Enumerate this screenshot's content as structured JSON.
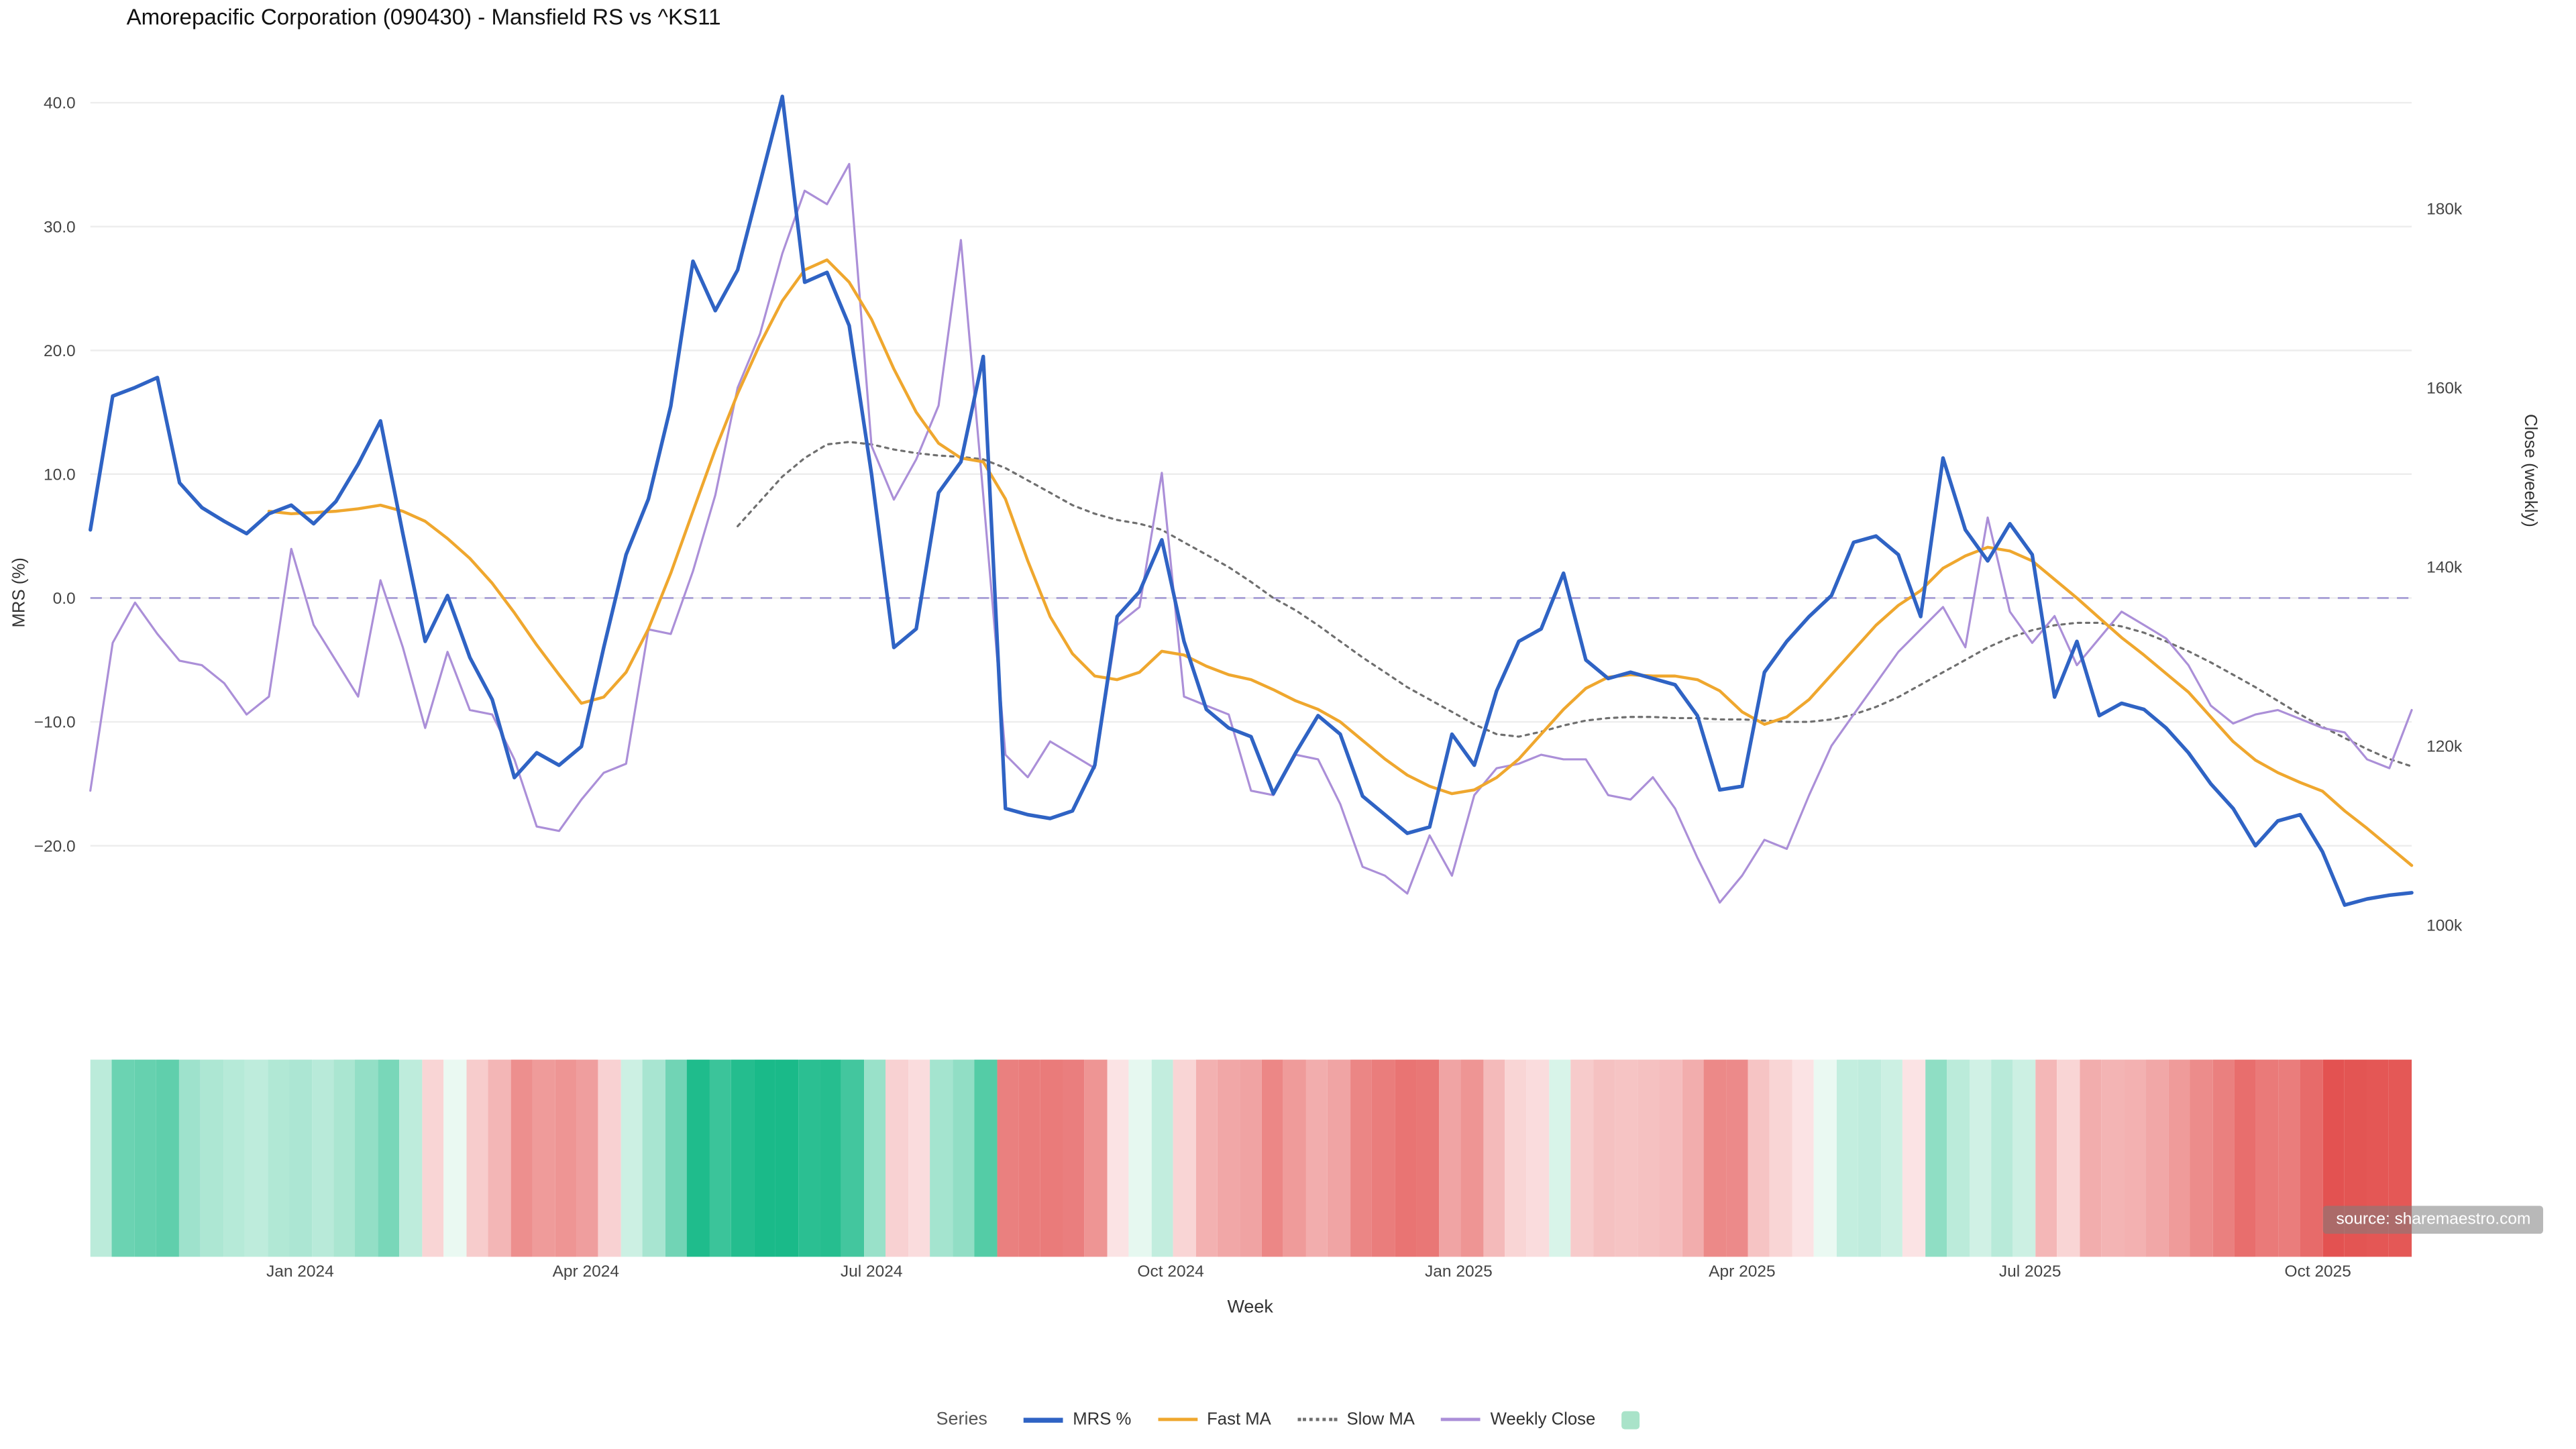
{
  "title": "Amorepacific Corporation (090430) - Mansfield RS vs ^KS11",
  "source": "source: sharemaestro.com",
  "axes": {
    "left": {
      "title": "MRS (%)",
      "ticks": [
        "40.0",
        "30.0",
        "20.0",
        "10.0",
        "0.0",
        "−10.0",
        "−20.0"
      ],
      "tick_values": [
        40,
        30,
        20,
        10,
        0,
        -10,
        -20
      ]
    },
    "right": {
      "title": "Close (weekly)",
      "ticks": [
        "180k",
        "160k",
        "140k",
        "120k",
        "100k"
      ],
      "tick_values": [
        180,
        160,
        140,
        120,
        100
      ]
    },
    "x": {
      "title": "Week",
      "ticks": [
        {
          "label": "Jan 2024",
          "week": 9.4
        },
        {
          "label": "Apr 2024",
          "week": 22.2
        },
        {
          "label": "Jul 2024",
          "week": 35.0
        },
        {
          "label": "Oct 2024",
          "week": 48.4
        },
        {
          "label": "Jan 2025",
          "week": 61.3
        },
        {
          "label": "Apr 2025",
          "week": 74.0
        },
        {
          "label": "Jul 2025",
          "week": 86.9
        },
        {
          "label": "Oct 2025",
          "week": 99.8
        }
      ]
    }
  },
  "legend": {
    "label": "Series",
    "items": [
      {
        "name": "MRS %",
        "style": "line",
        "color": "#2f63c4"
      },
      {
        "name": "Fast MA",
        "style": "line",
        "color": "#efa72e"
      },
      {
        "name": "Slow MA",
        "style": "dotted",
        "color": "#6f6f6f"
      },
      {
        "name": "Weekly Close",
        "style": "line",
        "color": "#ab8fd8"
      },
      {
        "name": "",
        "style": "swatch",
        "color": "#a9e3c9"
      }
    ]
  },
  "chart_data": {
    "type": "line",
    "title": "Amorepacific Corporation (090430) - Mansfield RS vs ^KS11",
    "xlabel": "Week",
    "ylabel_left": "MRS (%)",
    "ylabel_right": "Close (weekly)",
    "ylim_left": [
      -31,
      42
    ],
    "ylim_right_k": [
      95,
      191
    ],
    "x_tick_labels": [
      "Jan 2024",
      "Apr 2024",
      "Jul 2024",
      "Oct 2024",
      "Jan 2025",
      "Apr 2025",
      "Jul 2025",
      "Oct 2025"
    ],
    "n_weeks": 105,
    "zero_line": {
      "value": 0,
      "style": "dashed",
      "color": "#a9a0d6"
    },
    "grid": "horizontal-light",
    "legend_position": "bottom-center",
    "series": [
      {
        "name": "MRS %",
        "axis": "left",
        "color": "#2f63c4",
        "style": "solid",
        "width": 2.2,
        "values": [
          5.5,
          16.3,
          17.0,
          17.8,
          9.3,
          7.3,
          6.2,
          5.2,
          6.8,
          7.5,
          6.0,
          7.8,
          10.8,
          14.3,
          5.2,
          -3.5,
          0.2,
          -4.8,
          -8.2,
          -14.5,
          -12.5,
          -13.5,
          -12.0,
          -4.0,
          3.5,
          8.0,
          15.5,
          27.2,
          23.2,
          26.5,
          33.5,
          40.5,
          25.5,
          26.3,
          22.0,
          10.0,
          -4.0,
          -2.5,
          8.5,
          11.0,
          19.5,
          -17.0,
          -17.5,
          -17.8,
          -17.2,
          -13.5,
          -1.5,
          0.5,
          4.7,
          -3.5,
          -9.0,
          -10.5,
          -11.2,
          -15.8,
          -12.5,
          -9.5,
          -11.0,
          -16.0,
          -17.5,
          -19.0,
          -18.5,
          -11.0,
          -13.5,
          -7.5,
          -3.5,
          -2.5,
          2.0,
          -5.0,
          -6.5,
          -6.0,
          -6.5,
          -7.0,
          -9.5,
          -15.5,
          -15.2,
          -6.0,
          -3.5,
          -1.5,
          0.2,
          4.5,
          5.0,
          3.5,
          -1.5,
          11.3,
          5.5,
          3.0,
          6.0,
          3.5,
          -8.0,
          -3.5,
          -9.5,
          -8.5,
          -9.0,
          -10.5,
          -12.5,
          -15.0,
          -17.0,
          -20.0,
          -18.0,
          -17.5,
          -20.5,
          -24.8,
          -24.3,
          -24.0,
          -23.8
        ]
      },
      {
        "name": "Fast MA",
        "axis": "left",
        "color": "#efa72e",
        "style": "solid",
        "width": 1.8,
        "values": [
          null,
          null,
          null,
          null,
          null,
          null,
          null,
          null,
          7.0,
          6.8,
          6.9,
          7.0,
          7.2,
          7.5,
          7.0,
          6.2,
          4.8,
          3.2,
          1.2,
          -1.2,
          -3.8,
          -6.2,
          -8.5,
          -8.0,
          -6.0,
          -2.5,
          2.0,
          7.0,
          12.0,
          16.5,
          20.5,
          24.0,
          26.5,
          27.3,
          25.5,
          22.5,
          18.5,
          15.0,
          12.5,
          11.3,
          11.0,
          8.0,
          3.0,
          -1.5,
          -4.5,
          -6.3,
          -6.6,
          -6.0,
          -4.3,
          -4.6,
          -5.5,
          -6.2,
          -6.6,
          -7.4,
          -8.3,
          -9.0,
          -10.0,
          -11.5,
          -13.0,
          -14.3,
          -15.2,
          -15.8,
          -15.5,
          -14.5,
          -13.0,
          -11.0,
          -9.0,
          -7.3,
          -6.4,
          -6.2,
          -6.3,
          -6.3,
          -6.6,
          -7.5,
          -9.2,
          -10.2,
          -9.6,
          -8.2,
          -6.2,
          -4.2,
          -2.2,
          -0.6,
          0.6,
          2.4,
          3.4,
          4.1,
          3.8,
          3.0,
          1.5,
          0.0,
          -1.6,
          -3.2,
          -4.6,
          -6.1,
          -7.6,
          -9.6,
          -11.6,
          -13.1,
          -14.1,
          -14.9,
          -15.6,
          -17.2,
          -18.6,
          -20.1,
          -21.6
        ]
      },
      {
        "name": "Slow MA",
        "axis": "left",
        "color": "#6f6f6f",
        "style": "dotted",
        "width": 1.3,
        "values": [
          null,
          null,
          null,
          null,
          null,
          null,
          null,
          null,
          null,
          null,
          null,
          null,
          null,
          null,
          null,
          null,
          null,
          null,
          null,
          null,
          null,
          null,
          null,
          null,
          null,
          null,
          null,
          null,
          null,
          5.8,
          7.8,
          9.8,
          11.3,
          12.4,
          12.6,
          12.4,
          12.0,
          11.7,
          11.5,
          11.4,
          11.2,
          10.5,
          9.5,
          8.5,
          7.5,
          6.8,
          6.3,
          6.0,
          5.5,
          4.5,
          3.5,
          2.5,
          1.3,
          0.0,
          -1.0,
          -2.2,
          -3.5,
          -4.8,
          -6.0,
          -7.2,
          -8.2,
          -9.2,
          -10.2,
          -11.0,
          -11.2,
          -10.8,
          -10.3,
          -9.9,
          -9.7,
          -9.6,
          -9.6,
          -9.7,
          -9.7,
          -9.8,
          -9.8,
          -9.9,
          -10.0,
          -10.0,
          -9.8,
          -9.4,
          -8.8,
          -8.0,
          -7.0,
          -6.0,
          -5.0,
          -4.0,
          -3.2,
          -2.6,
          -2.2,
          -2.0,
          -2.0,
          -2.3,
          -2.8,
          -3.5,
          -4.3,
          -5.2,
          -6.2,
          -7.2,
          -8.3,
          -9.4,
          -10.4,
          -11.3,
          -12.2,
          -13.0,
          -13.6
        ]
      },
      {
        "name": "Weekly Close",
        "axis": "right",
        "unit": "k",
        "color": "#ab8fd8",
        "style": "solid",
        "width": 1.3,
        "values": [
          115.0,
          131.5,
          136.0,
          132.5,
          129.5,
          129.0,
          127.0,
          123.5,
          125.5,
          142.0,
          133.5,
          129.5,
          125.5,
          138.5,
          131.0,
          122.0,
          130.5,
          124.0,
          123.5,
          118.5,
          111.0,
          110.5,
          114.0,
          117.0,
          118.0,
          133.0,
          132.5,
          139.5,
          148.0,
          160.0,
          166.0,
          175.0,
          182.0,
          180.5,
          185.0,
          153.5,
          147.5,
          152.0,
          158.0,
          176.5,
          148.0,
          119.0,
          116.5,
          120.5,
          119.0,
          117.5,
          133.5,
          135.5,
          150.5,
          125.5,
          124.5,
          123.5,
          115.0,
          114.5,
          119.0,
          118.5,
          113.5,
          106.5,
          105.5,
          103.5,
          110.0,
          105.5,
          114.5,
          117.5,
          118.0,
          119.0,
          118.5,
          118.5,
          114.5,
          114.0,
          116.5,
          113.0,
          107.5,
          102.5,
          105.5,
          109.5,
          108.5,
          114.5,
          120.0,
          123.5,
          127.0,
          130.5,
          133.0,
          135.5,
          131.0,
          145.5,
          135.0,
          131.5,
          134.5,
          129.0,
          132.0,
          135.0,
          133.5,
          132.0,
          129.0,
          124.5,
          122.5,
          123.5,
          124.0,
          123.0,
          122.0,
          121.5,
          118.5,
          117.5,
          124.0
        ]
      }
    ],
    "heatmap": {
      "type": "heatmap",
      "source_series": "MRS %",
      "description": "weekly relative-strength strip, green = positive MRS, red = negative MRS",
      "positive_color": "#1aba89",
      "negative_color": "#e0403e"
    }
  }
}
